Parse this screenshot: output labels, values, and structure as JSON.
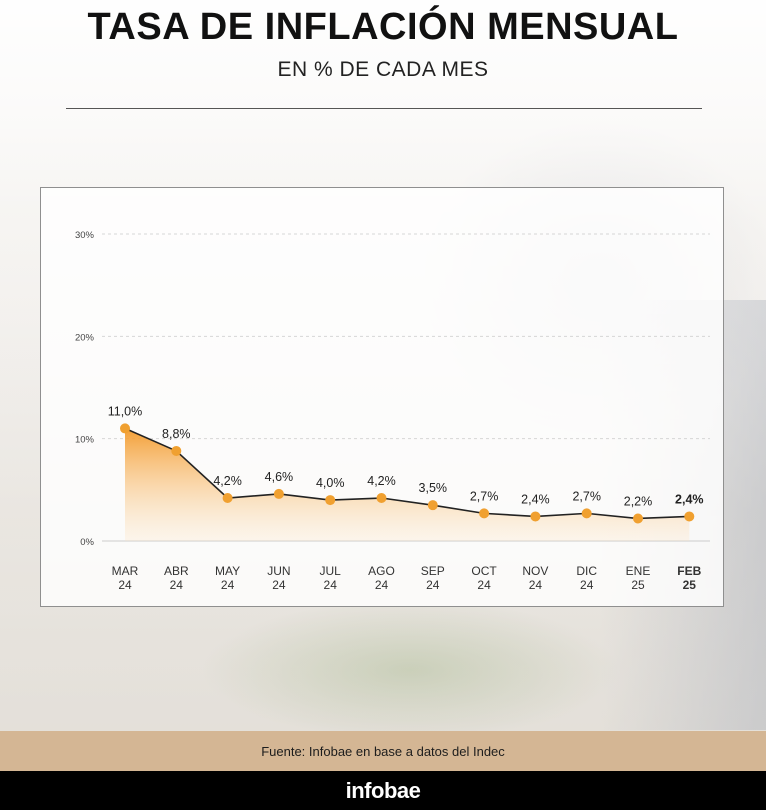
{
  "header": {
    "title": "TASA DE INFLACIÓN MENSUAL",
    "subtitle": "EN % DE CADA MES"
  },
  "footer": {
    "source": "Fuente: Infobae en base a datos del Indec",
    "brand": "infobae"
  },
  "colors": {
    "accent": "#f0a030",
    "line": "#222222",
    "source_bar": "#d4b694"
  },
  "chart_data": {
    "type": "area",
    "title": "TASA DE INFLACIÓN MENSUAL",
    "subtitle": "EN % DE CADA MES",
    "categories": [
      {
        "month": "MAR",
        "year": "24"
      },
      {
        "month": "ABR",
        "year": "24"
      },
      {
        "month": "MAY",
        "year": "24"
      },
      {
        "month": "JUN",
        "year": "24"
      },
      {
        "month": "JUL",
        "year": "24"
      },
      {
        "month": "AGO",
        "year": "24"
      },
      {
        "month": "SEP",
        "year": "24"
      },
      {
        "month": "OCT",
        "year": "24"
      },
      {
        "month": "NOV",
        "year": "24"
      },
      {
        "month": "DIC",
        "year": "24"
      },
      {
        "month": "ENE",
        "year": "25"
      },
      {
        "month": "FEB",
        "year": "25"
      }
    ],
    "values": [
      11.0,
      8.8,
      4.2,
      4.6,
      4.0,
      4.2,
      3.5,
      2.7,
      2.4,
      2.7,
      2.2,
      2.4
    ],
    "data_labels": [
      "11,0%",
      "8,8%",
      "4,2%",
      "4,6%",
      "4,0%",
      "4,2%",
      "3,5%",
      "2,7%",
      "2,4%",
      "2,7%",
      "2,2%",
      "2,4%"
    ],
    "highlight_index": 11,
    "ylim": [
      0,
      30
    ],
    "yticks": [
      0,
      10,
      20,
      30
    ],
    "ytick_labels": [
      "0%",
      "10%",
      "20%",
      "30%"
    ],
    "grid": true,
    "legend": "none"
  }
}
